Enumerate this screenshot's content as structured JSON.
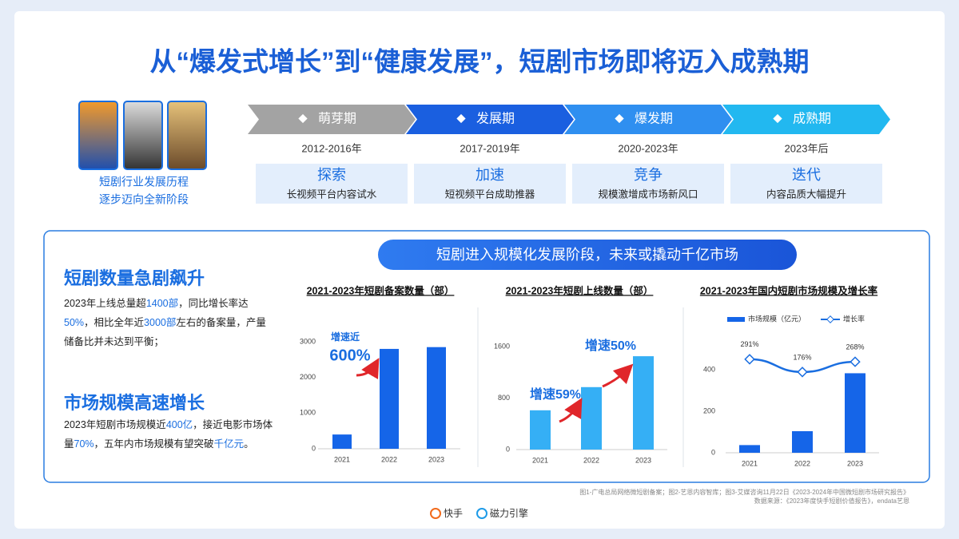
{
  "title": "从“爆发式增长”到“健康发展”，短剧市场即将迈入成熟期",
  "intro": [
    "短剧行业发展历程",
    "逐步迈向全新阶段"
  ],
  "timeline": [
    {
      "phase": "萌芽期",
      "years": "2012-2016年",
      "keyword": "探索",
      "desc": "长视频平台内容试水"
    },
    {
      "phase": "发展期",
      "years": "2017-2019年",
      "keyword": "加速",
      "desc": "短视频平台成助推器"
    },
    {
      "phase": "爆发期",
      "years": "2020-2023年",
      "keyword": "竞争",
      "desc": "规模激增成市场新风口"
    },
    {
      "phase": "成熟期",
      "years": "2023年后",
      "keyword": "迭代",
      "desc": "内容品质大幅提升"
    }
  ],
  "banner": "短剧进入规模化发展阶段，未来或撬动千亿市场",
  "points": [
    {
      "heading": "短剧数量急剧飙升",
      "text": [
        "2023年上线总量超",
        "1400部",
        "，同比增长率达",
        "50%",
        "，相比全年近",
        "3000部",
        "左右的备案量，产量储备比并未达到平衡；"
      ]
    },
    {
      "heading": "市场规模高速增长",
      "text": [
        "2023年短剧市场规模近",
        "400亿",
        "，接近电影市场体量",
        "70%",
        "，五年内市场规模有望突破",
        "千亿元",
        "。"
      ]
    }
  ],
  "chart_data": [
    {
      "type": "bar",
      "title": "2021-2023年短剧备案数量（部）",
      "categories": [
        "2021",
        "2022",
        "2023"
      ],
      "values": [
        400,
        2800,
        2850
      ],
      "color": "#1565e8",
      "ylim": [
        0,
        3000
      ],
      "yticks": [
        0,
        1000,
        2000,
        3000
      ],
      "annotations": [
        "增速近",
        "600%"
      ]
    },
    {
      "type": "bar",
      "title": "2021-2023年短剧上线数量（部）",
      "categories": [
        "2021",
        "2022",
        "2023"
      ],
      "values": [
        610,
        970,
        1450
      ],
      "color": "#35aff5",
      "ylim": [
        0,
        1600
      ],
      "yticks": [
        0,
        800,
        1600
      ],
      "annotations": [
        "增速59%",
        "增速50%"
      ]
    },
    {
      "type": "bar-line",
      "title": "2021-2023年国内短剧市场规模及增长率",
      "categories": [
        "2021",
        "2022",
        "2023"
      ],
      "ylim": [
        0,
        600
      ],
      "yticks": [
        0,
        200,
        400
      ],
      "y2lim": [
        -550,
        570
      ],
      "series": [
        {
          "name": "市场规模（亿元）",
          "color": "#1565e8",
          "values": [
            37,
            104,
            383
          ]
        },
        {
          "name": "增长率",
          "color": "#1a6ee0",
          "values": [
            291,
            176,
            268
          ],
          "value_labels": [
            "291%",
            "176%",
            "268%"
          ],
          "axis": "y2"
        }
      ]
    }
  ],
  "footnote": [
    "图1-广电总局网络微短剧备案；图2-艺恩内容智库；图3-艾媒咨询11月22日《2023-2024年中国微短剧市场研究报告》",
    "数据来源：《2023年度快手短剧价值报告》，endata艺恩"
  ],
  "logos": [
    "快手",
    "磁力引擎"
  ]
}
